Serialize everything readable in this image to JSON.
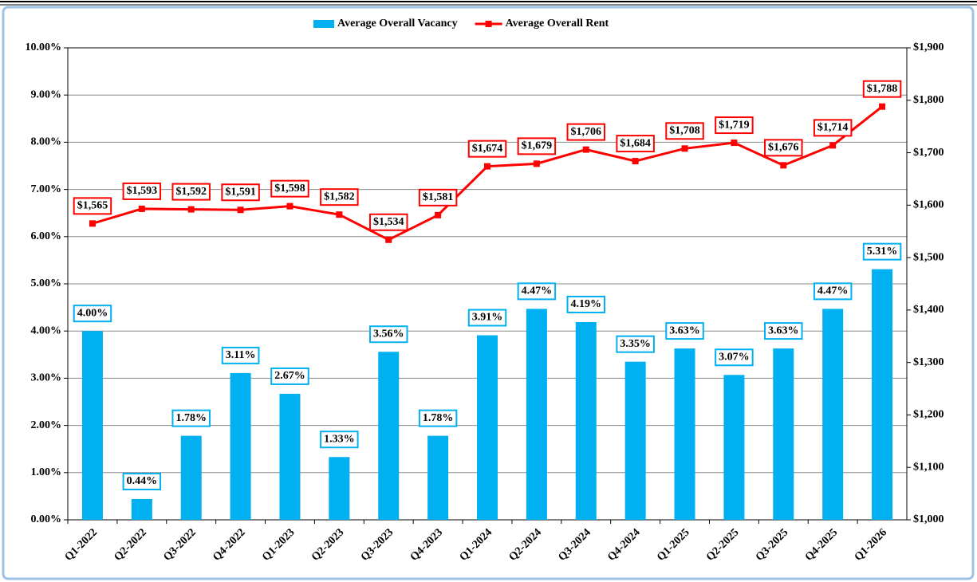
{
  "chart_data": {
    "type": "combo",
    "categories": [
      "Q1-2022",
      "Q2-2022",
      "Q3-2022",
      "Q4-2022",
      "Q1-2023",
      "Q2-2023",
      "Q3-2023",
      "Q4-2023",
      "Q1-2024",
      "Q2-2024",
      "Q3-2024",
      "Q4-2024",
      "Q1-2025",
      "Q2-2025",
      "Q3-2025",
      "Q4-2025",
      "Q1-2026"
    ],
    "series": [
      {
        "name": "Average Overall Vacancy",
        "type": "bar",
        "color": "#00b0f0",
        "values": [
          4.0,
          0.44,
          1.78,
          3.11,
          2.67,
          1.33,
          3.56,
          1.78,
          3.91,
          4.47,
          4.19,
          3.35,
          3.63,
          3.07,
          3.63,
          4.47,
          5.31
        ],
        "value_labels": [
          "4.00%",
          "0.44%",
          "1.78%",
          "3.11%",
          "2.67%",
          "1.33%",
          "3.56%",
          "1.78%",
          "3.91%",
          "4.47%",
          "4.19%",
          "3.35%",
          "3.63%",
          "3.07%",
          "3.63%",
          "4.47%",
          "5.31%"
        ]
      },
      {
        "name": "Average Overall Rent",
        "type": "line",
        "color": "#ff0000",
        "axis": "y2",
        "values": [
          1565,
          1593,
          1592,
          1591,
          1598,
          1582,
          1534,
          1581,
          1674,
          1679,
          1706,
          1684,
          1708,
          1719,
          1676,
          1714,
          1788
        ],
        "value_labels": [
          "$1,565",
          "$1,593",
          "$1,592",
          "$1,591",
          "$1,598",
          "$1,582",
          "$1,534",
          "$1,581",
          "$1,674",
          "$1,679",
          "$1,706",
          "$1,684",
          "$1,708",
          "$1,719",
          "$1,676",
          "$1,714",
          "$1,788"
        ]
      }
    ],
    "ylim": [
      0,
      10
    ],
    "yticks": [
      {
        "value": 0,
        "label": "0.00%"
      },
      {
        "value": 1,
        "label": "1.00%"
      },
      {
        "value": 2,
        "label": "2.00%"
      },
      {
        "value": 3,
        "label": "3.00%"
      },
      {
        "value": 4,
        "label": "4.00%"
      },
      {
        "value": 5,
        "label": "5.00%"
      },
      {
        "value": 6,
        "label": "6.00%"
      },
      {
        "value": 7,
        "label": "7.00%"
      },
      {
        "value": 8,
        "label": "8.00%"
      },
      {
        "value": 9,
        "label": "9.00%"
      },
      {
        "value": 10,
        "label": "10.00%"
      }
    ],
    "y2lim": [
      1000,
      1900
    ],
    "y2ticks": [
      {
        "value": 1000,
        "label": "$1,000"
      },
      {
        "value": 1100,
        "label": "$1,100"
      },
      {
        "value": 1200,
        "label": "$1,200"
      },
      {
        "value": 1300,
        "label": "$1,300"
      },
      {
        "value": 1400,
        "label": "$1,400"
      },
      {
        "value": 1500,
        "label": "$1,500"
      },
      {
        "value": 1600,
        "label": "$1,600"
      },
      {
        "value": 1700,
        "label": "$1,700"
      },
      {
        "value": 1800,
        "label": "$1,800"
      },
      {
        "value": 1900,
        "label": "$1,900"
      }
    ],
    "grid": true,
    "legend": "top"
  }
}
